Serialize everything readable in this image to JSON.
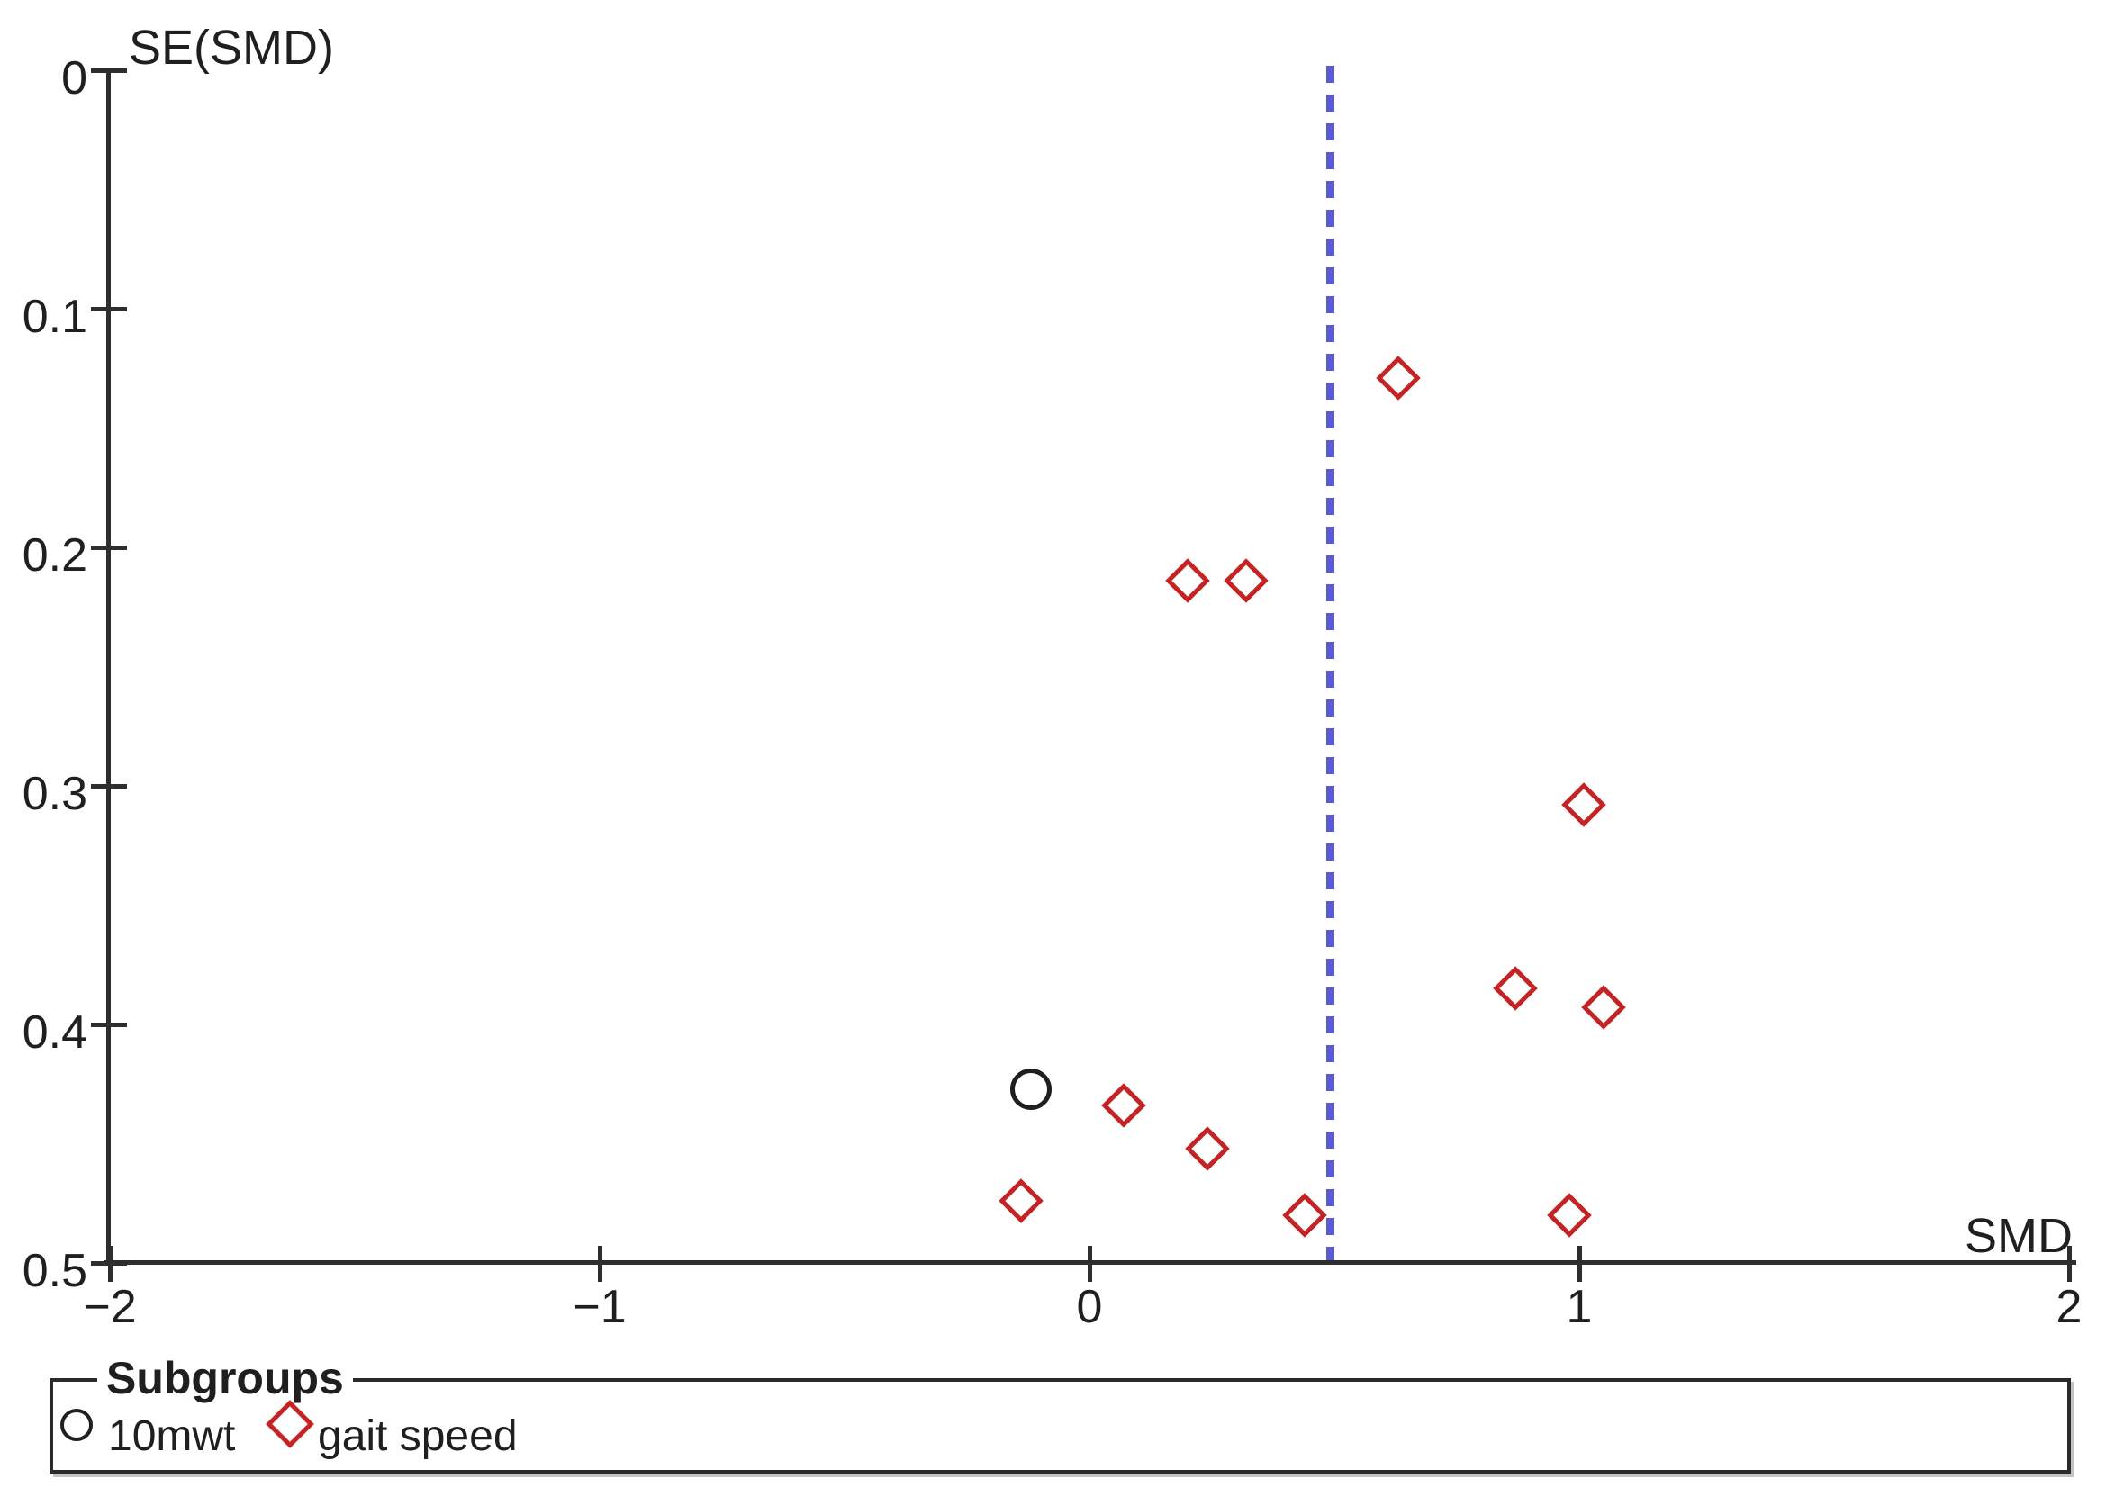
{
  "figure": {
    "background_color": "#ffffff",
    "axis_color": "#2e2e2e",
    "text_color": "#1f1f1f"
  },
  "axes": {
    "y": {
      "title": "SE(SMD)",
      "min": 0,
      "max": 0.5,
      "inverted": true,
      "ticks": [
        {
          "label": "0",
          "value": 0
        },
        {
          "label": "0.1",
          "value": 0.1
        },
        {
          "label": "0.2",
          "value": 0.2
        },
        {
          "label": "0.3",
          "value": 0.3
        },
        {
          "label": "0.4",
          "value": 0.4
        },
        {
          "label": "0.5",
          "value": 0.5
        }
      ]
    },
    "x": {
      "title": "SMD",
      "min": -2,
      "max": 2,
      "ticks": [
        {
          "label": "−2",
          "value": -2
        },
        {
          "label": "−1",
          "value": -1
        },
        {
          "label": "0",
          "value": 0
        },
        {
          "label": "1",
          "value": 1
        },
        {
          "label": "2",
          "value": 2
        }
      ]
    }
  },
  "reference_line": {
    "x": 0.49,
    "style": "dashed",
    "color": "#5a5ad2"
  },
  "legend": {
    "title": "Subgroups",
    "items": [
      {
        "label": "10mwt",
        "marker": "circle",
        "color": "#1f1f1f"
      },
      {
        "label": "gait speed",
        "marker": "diamond",
        "color": "#c92121"
      }
    ]
  },
  "chart_data": {
    "type": "scatter",
    "subtype": "funnel-plot",
    "title": "",
    "xlabel": "SMD",
    "ylabel": "SE(SMD)",
    "xlim": [
      -2,
      2
    ],
    "ylim": [
      0,
      0.5
    ],
    "y_axis_inverted": true,
    "grid": false,
    "legend_position": "bottom",
    "reference_line_x": 0.49,
    "series": [
      {
        "name": "10mwt",
        "marker": "circle",
        "color": "#1f1f1f",
        "points": [
          {
            "x": -0.12,
            "se": 0.427
          }
        ]
      },
      {
        "name": "gait speed",
        "marker": "diamond",
        "color": "#c92121",
        "points": [
          {
            "x": 0.63,
            "se": 0.129
          },
          {
            "x": 0.2,
            "se": 0.214
          },
          {
            "x": 0.32,
            "se": 0.214
          },
          {
            "x": 1.01,
            "se": 0.308
          },
          {
            "x": 0.87,
            "se": 0.385
          },
          {
            "x": 1.05,
            "se": 0.393
          },
          {
            "x": 0.07,
            "se": 0.434
          },
          {
            "x": 0.24,
            "se": 0.452
          },
          {
            "x": -0.14,
            "se": 0.474
          },
          {
            "x": 0.44,
            "se": 0.48
          },
          {
            "x": 0.98,
            "se": 0.48
          }
        ]
      }
    ]
  }
}
